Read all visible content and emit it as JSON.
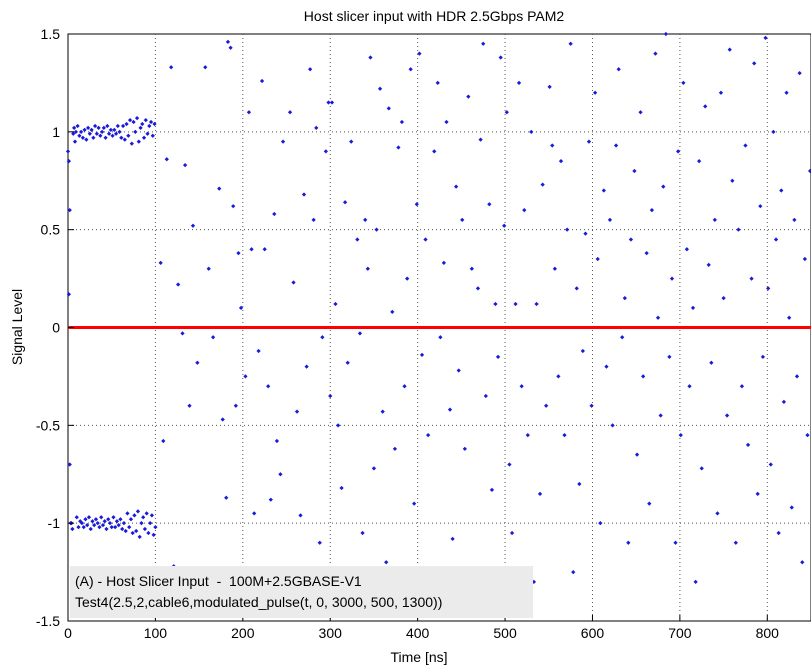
{
  "chart_data": {
    "type": "scatter",
    "title": "Host slicer input with HDR 2.5Gbps PAM2",
    "xlabel": "Time [ns]",
    "ylabel": "Signal Level",
    "xlim": [
      0,
      850
    ],
    "ylim": [
      -1.5,
      1.5
    ],
    "x_ticks": [
      "0",
      "100",
      "200",
      "300",
      "400",
      "500",
      "600",
      "700",
      "800"
    ],
    "y_ticks": [
      "1.5",
      "1",
      "0.5",
      "0",
      "-0.5",
      "-1",
      "-1.5"
    ],
    "grid": true,
    "colors": {
      "points": "#1a1adb",
      "threshold": "#ff0000",
      "annotation_bg": "#ebebeb"
    },
    "threshold": {
      "y": 0
    },
    "annotation": {
      "line1": "(A) - Host Slicer Input  -  100M+2.5GBASE-V1",
      "line2": "Test4(2.5,2,cable6,modulated_pulse(t, 0, 3000, 500, 1300))"
    },
    "series": [
      {
        "points": [
          [
            0,
            0.9
          ],
          [
            1,
            0.85
          ],
          [
            1,
            0.17
          ],
          [
            2,
            0.6
          ],
          [
            2,
            -0.7
          ],
          [
            3,
            -1.0
          ],
          [
            4,
            -1.0
          ],
          [
            5,
            -1.03
          ],
          [
            6,
            0.99
          ],
          [
            7,
            1.02
          ],
          [
            8,
            0.95
          ],
          [
            9,
            1.0
          ],
          [
            10,
            -0.97
          ],
          [
            11,
            1.03
          ],
          [
            12,
            -1.02
          ],
          [
            13,
            0.98
          ],
          [
            14,
            -0.99
          ],
          [
            15,
            1.0
          ],
          [
            16,
            -1.0
          ],
          [
            17,
            0.97
          ],
          [
            18,
            -1.02
          ],
          [
            19,
            1.01
          ],
          [
            20,
            -0.98
          ],
          [
            21,
            0.96
          ],
          [
            22,
            -1.01
          ],
          [
            23,
            1.02
          ],
          [
            24,
            -0.97
          ],
          [
            25,
            0.99
          ],
          [
            26,
            -1.03
          ],
          [
            27,
            1.01
          ],
          [
            28,
            -0.99
          ],
          [
            29,
            0.97
          ],
          [
            30,
            -1.01
          ],
          [
            31,
            1.03
          ],
          [
            32,
            -0.98
          ],
          [
            33,
            0.99
          ],
          [
            34,
            -1.0
          ],
          [
            35,
            1.02
          ],
          [
            36,
            -1.02
          ],
          [
            37,
            0.98
          ],
          [
            38,
            -0.97
          ],
          [
            39,
            1.0
          ],
          [
            40,
            -1.01
          ],
          [
            41,
            1.02
          ],
          [
            42,
            -0.99
          ],
          [
            43,
            0.97
          ],
          [
            44,
            -1.03
          ],
          [
            45,
            1.03
          ],
          [
            46,
            -0.98
          ],
          [
            47,
            0.99
          ],
          [
            48,
            -1.0
          ],
          [
            49,
            1.01
          ],
          [
            50,
            -1.02
          ],
          [
            51,
            0.98
          ],
          [
            52,
            -0.97
          ],
          [
            53,
            1.01
          ],
          [
            54,
            -1.02
          ],
          [
            55,
            0.99
          ],
          [
            56,
            -0.99
          ],
          [
            57,
            1.03
          ],
          [
            58,
            -1.01
          ],
          [
            59,
            1.0
          ],
          [
            60,
            -0.98
          ],
          [
            61,
            0.97
          ],
          [
            62,
            -1.03
          ],
          [
            63,
            1.03
          ],
          [
            64,
            -1.0
          ],
          [
            65,
            0.96
          ],
          [
            66,
            -1.04
          ],
          [
            67,
            1.04
          ],
          [
            68,
            -0.95
          ],
          [
            69,
            0.98
          ],
          [
            70,
            -1.02
          ],
          [
            71,
            1.06
          ],
          [
            72,
            -0.98
          ],
          [
            73,
            0.94
          ],
          [
            74,
            -1.05
          ],
          [
            75,
            1.05
          ],
          [
            76,
            -0.96
          ],
          [
            77,
            1.0
          ],
          [
            78,
            -1.04
          ],
          [
            79,
            1.07
          ],
          [
            80,
            -0.94
          ],
          [
            81,
            0.95
          ],
          [
            82,
            -1.07
          ],
          [
            83,
            1.02
          ],
          [
            84,
            -1.0
          ],
          [
            85,
            1.04
          ],
          [
            86,
            -0.97
          ],
          [
            87,
            0.97
          ],
          [
            88,
            -1.03
          ],
          [
            89,
            1.06
          ],
          [
            90,
            -0.95
          ],
          [
            91,
            0.99
          ],
          [
            92,
            -1.05
          ],
          [
            93,
            1.03
          ],
          [
            94,
            -1.0
          ],
          [
            95,
            1.05
          ],
          [
            96,
            -0.96
          ],
          [
            97,
            0.98
          ],
          [
            98,
            -1.06
          ],
          [
            99,
            1.04
          ],
          [
            100,
            -1.02
          ],
          [
            106,
            0.33
          ],
          [
            109,
            -0.58
          ],
          [
            113,
            0.86
          ],
          [
            118,
            1.33
          ],
          [
            121,
            -1.22
          ],
          [
            126,
            0.22
          ],
          [
            131,
            -0.03
          ],
          [
            134,
            0.83
          ],
          [
            139,
            -0.4
          ],
          [
            143,
            0.52
          ],
          [
            148,
            -0.18
          ],
          [
            153,
            -1.32
          ],
          [
            157,
            1.33
          ],
          [
            161,
            0.3
          ],
          [
            166,
            -0.05
          ],
          [
            170,
            -1.25
          ],
          [
            173,
            0.71
          ],
          [
            177,
            -0.47
          ],
          [
            181,
            -0.87
          ],
          [
            183,
            1.46
          ],
          [
            186,
            1.43
          ],
          [
            189,
            0.62
          ],
          [
            192,
            -0.4
          ],
          [
            195,
            0.38
          ],
          [
            198,
            0.1
          ],
          [
            200,
            -1.28
          ],
          [
            203,
            -0.25
          ],
          [
            207,
            1.1
          ],
          [
            210,
            0.4
          ],
          [
            213,
            -0.95
          ],
          [
            218,
            -0.12
          ],
          [
            222,
            1.26
          ],
          [
            225,
            0.4
          ],
          [
            229,
            -0.3
          ],
          [
            232,
            -0.88
          ],
          [
            236,
            0.58
          ],
          [
            239,
            -0.58
          ],
          [
            243,
            -0.75
          ],
          [
            246,
            0.95
          ],
          [
            250,
            -1.25
          ],
          [
            254,
            1.1
          ],
          [
            258,
            0.23
          ],
          [
            262,
            -0.43
          ],
          [
            266,
            -0.96
          ],
          [
            270,
            0.68
          ],
          [
            273,
            -0.2
          ],
          [
            277,
            1.32
          ],
          [
            281,
            0.55
          ],
          [
            284,
            1.02
          ],
          [
            288,
            -1.1
          ],
          [
            291,
            -0.05
          ],
          [
            295,
            0.9
          ],
          [
            298,
            1.15
          ],
          [
            300,
            -0.35
          ],
          [
            302,
            1.15
          ],
          [
            306,
            0.12
          ],
          [
            309,
            -0.5
          ],
          [
            313,
            -0.82
          ],
          [
            317,
            0.64
          ],
          [
            320,
            -0.18
          ],
          [
            324,
            0.95
          ],
          [
            327,
            -1.35
          ],
          [
            331,
            0.45
          ],
          [
            334,
            -0.03
          ],
          [
            337,
            -1.05
          ],
          [
            340,
            0.55
          ],
          [
            343,
            0.3
          ],
          [
            346,
            1.38
          ],
          [
            350,
            -0.72
          ],
          [
            353,
            0.5
          ],
          [
            357,
            1.22
          ],
          [
            360,
            -0.43
          ],
          [
            364,
            -1.2
          ],
          [
            367,
            1.12
          ],
          [
            371,
            0.08
          ],
          [
            374,
            -0.62
          ],
          [
            378,
            0.92
          ],
          [
            382,
            1.05
          ],
          [
            385,
            -0.3
          ],
          [
            388,
            0.25
          ],
          [
            392,
            1.32
          ],
          [
            396,
            -0.9
          ],
          [
            399,
            0.63
          ],
          [
            402,
            1.4
          ],
          [
            405,
            -0.14
          ],
          [
            409,
            0.45
          ],
          [
            412,
            -0.55
          ],
          [
            416,
            -1.3
          ],
          [
            419,
            0.9
          ],
          [
            423,
            1.25
          ],
          [
            426,
            -0.05
          ],
          [
            430,
            0.33
          ],
          [
            433,
            1.05
          ],
          [
            437,
            -0.42
          ],
          [
            440,
            -1.08
          ],
          [
            444,
            0.72
          ],
          [
            447,
            -0.22
          ],
          [
            451,
            0.55
          ],
          [
            454,
            -0.62
          ],
          [
            458,
            1.18
          ],
          [
            462,
            0.3
          ],
          [
            465,
            -1.25
          ],
          [
            469,
            0.2
          ],
          [
            472,
            0.96
          ],
          [
            475,
            1.45
          ],
          [
            478,
            -0.35
          ],
          [
            482,
            0.63
          ],
          [
            485,
            -0.83
          ],
          [
            489,
            0.12
          ],
          [
            492,
            -0.15
          ],
          [
            495,
            1.38
          ],
          [
            499,
            0.52
          ],
          [
            502,
            1.1
          ],
          [
            505,
            -0.7
          ],
          [
            508,
            -1.05
          ],
          [
            512,
            0.12
          ],
          [
            516,
            1.25
          ],
          [
            519,
            -0.3
          ],
          [
            522,
            0.6
          ],
          [
            526,
            -0.55
          ],
          [
            530,
            1.0
          ],
          [
            533,
            -1.3
          ],
          [
            536,
            0.12
          ],
          [
            540,
            -0.85
          ],
          [
            543,
            0.73
          ],
          [
            547,
            -0.4
          ],
          [
            551,
            1.23
          ],
          [
            554,
            0.93
          ],
          [
            557,
            0.3
          ],
          [
            561,
            -0.25
          ],
          [
            564,
            0.85
          ],
          [
            568,
            -0.55
          ],
          [
            571,
            0.5
          ],
          [
            575,
            1.45
          ],
          [
            578,
            -1.25
          ],
          [
            582,
            0.2
          ],
          [
            585,
            -0.8
          ],
          [
            589,
            -0.12
          ],
          [
            592,
            0.48
          ],
          [
            596,
            0.95
          ],
          [
            599,
            -0.4
          ],
          [
            603,
            1.2
          ],
          [
            606,
            0.35
          ],
          [
            609,
            -1.0
          ],
          [
            613,
            0.7
          ],
          [
            616,
            -0.2
          ],
          [
            620,
            0.55
          ],
          [
            623,
            -0.5
          ],
          [
            627,
            0.93
          ],
          [
            630,
            1.32
          ],
          [
            634,
            -0.05
          ],
          [
            637,
            0.15
          ],
          [
            641,
            -1.1
          ],
          [
            644,
            0.45
          ],
          [
            648,
            0.8
          ],
          [
            651,
            -0.65
          ],
          [
            655,
            1.1
          ],
          [
            658,
            -0.25
          ],
          [
            662,
            0.38
          ],
          [
            665,
            -0.9
          ],
          [
            668,
            0.6
          ],
          [
            672,
            1.4
          ],
          [
            675,
            0.05
          ],
          [
            678,
            -0.45
          ],
          [
            681,
            0.72
          ],
          [
            684,
            1.5
          ],
          [
            688,
            -0.15
          ],
          [
            691,
            0.25
          ],
          [
            695,
            -1.1
          ],
          [
            698,
            0.9
          ],
          [
            701,
            -0.55
          ],
          [
            704,
            1.25
          ],
          [
            708,
            0.4
          ],
          [
            711,
            -0.3
          ],
          [
            715,
            0.1
          ],
          [
            718,
            -1.3
          ],
          [
            722,
            0.85
          ],
          [
            725,
            -0.72
          ],
          [
            729,
            1.13
          ],
          [
            733,
            0.32
          ],
          [
            736,
            -0.18
          ],
          [
            740,
            0.55
          ],
          [
            743,
            -0.95
          ],
          [
            747,
            1.2
          ],
          [
            750,
            0.15
          ],
          [
            754,
            -0.45
          ],
          [
            757,
            1.42
          ],
          [
            760,
            0.75
          ],
          [
            764,
            -1.1
          ],
          [
            767,
            0.5
          ],
          [
            771,
            -0.3
          ],
          [
            775,
            0.93
          ],
          [
            778,
            -0.6
          ],
          [
            782,
            0.25
          ],
          [
            785,
            1.35
          ],
          [
            789,
            -0.85
          ],
          [
            792,
            0.62
          ],
          [
            795,
            -0.15
          ],
          [
            798,
            1.48
          ],
          [
            801,
            0.2
          ],
          [
            804,
            -0.7
          ],
          [
            807,
            1.0
          ],
          [
            810,
            0.45
          ],
          [
            813,
            -1.05
          ],
          [
            816,
            0.7
          ],
          [
            819,
            -0.38
          ],
          [
            822,
            1.2
          ],
          [
            825,
            0.05
          ],
          [
            828,
            -0.92
          ],
          [
            831,
            0.55
          ],
          [
            834,
            -0.25
          ],
          [
            837,
            1.3
          ],
          [
            840,
            -1.2
          ],
          [
            843,
            0.35
          ],
          [
            846,
            -0.55
          ],
          [
            849,
            0.8
          ]
        ]
      }
    ]
  }
}
